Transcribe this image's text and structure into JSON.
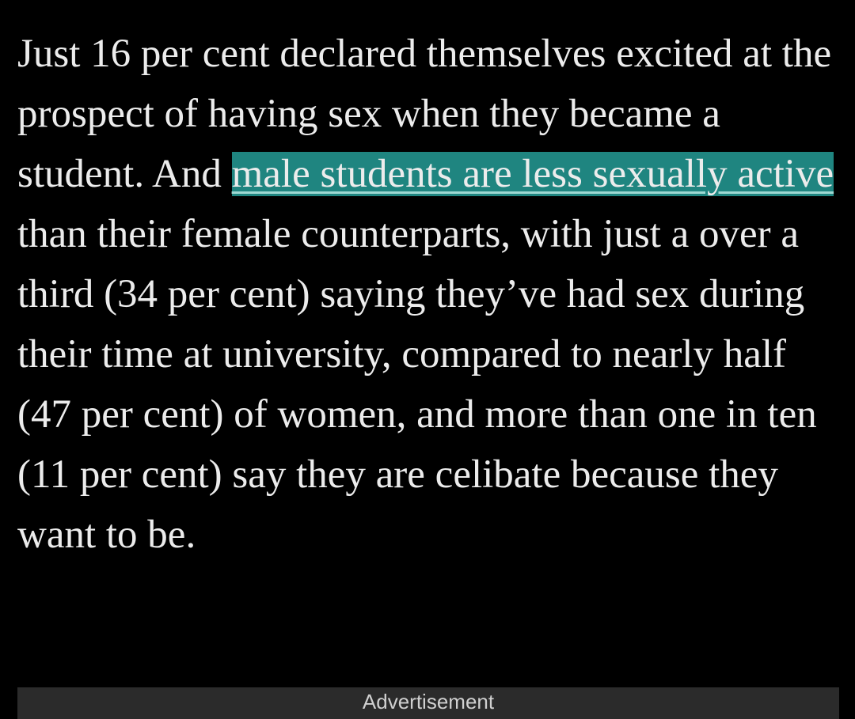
{
  "article": {
    "paragraph": {
      "before": "Just 16 per cent declared themselves excited at the prospect of having sex when they became a student. And ",
      "link": "male students are less sexually active",
      "after": " than their female counterparts, with just a over a third (34 per cent) saying they’ve had sex during their time at university, compared to nearly half (47 per cent) of women, and more than one in ten (11 per cent) say they are celibate because they want to be."
    },
    "advertisement": "Advertisement"
  }
}
